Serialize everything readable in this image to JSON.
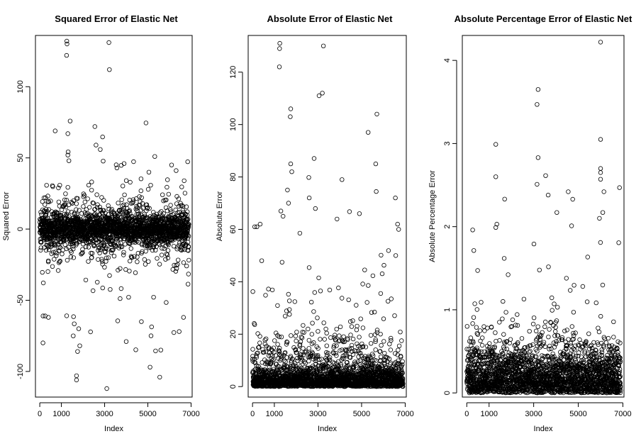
{
  "chart_data": [
    {
      "type": "scatter",
      "title": "Squared Error of Elastic Net",
      "xlabel": "Index",
      "ylabel": "Squared Error",
      "xlim": [
        -200,
        7050
      ],
      "ylim": [
        -118,
        136
      ],
      "xticks": [
        0,
        1000,
        3000,
        5000,
        7000
      ],
      "xtick_labels": [
        "0",
        "1000",
        "3000",
        "5000",
        "7000"
      ],
      "yticks": [
        -100,
        -50,
        0,
        50,
        100
      ],
      "ytick_labels": [
        "-100",
        "-50",
        "0",
        "50",
        "100"
      ],
      "n_points": 6900,
      "distribution": {
        "center": 0,
        "core_spread": 5,
        "mid_spread": 22,
        "outlier_fraction": 0.05
      },
      "notable_points": [
        {
          "x": 1250,
          "y": 132
        },
        {
          "x": 1260,
          "y": 130
        },
        {
          "x": 1240,
          "y": 122
        },
        {
          "x": 3200,
          "y": 131
        },
        {
          "x": 3220,
          "y": 112
        },
        {
          "x": 2550,
          "y": 72
        },
        {
          "x": 2600,
          "y": 59
        },
        {
          "x": 1300,
          "y": 67
        },
        {
          "x": 1300,
          "y": 52
        },
        {
          "x": 1350,
          "y": 48
        },
        {
          "x": 3900,
          "y": 46
        },
        {
          "x": 6100,
          "y": 45
        },
        {
          "x": 5050,
          "y": 40
        },
        {
          "x": 3100,
          "y": -112
        },
        {
          "x": 1700,
          "y": -103
        },
        {
          "x": 1700,
          "y": -106
        },
        {
          "x": 5550,
          "y": -104
        },
        {
          "x": 5100,
          "y": -97
        },
        {
          "x": 5600,
          "y": -85
        },
        {
          "x": 1750,
          "y": -86
        },
        {
          "x": 1850,
          "y": -82
        },
        {
          "x": 4000,
          "y": -79
        },
        {
          "x": 6450,
          "y": -72
        },
        {
          "x": 1800,
          "y": -70
        },
        {
          "x": 1550,
          "y": -75
        },
        {
          "x": 250,
          "y": -61
        },
        {
          "x": 150,
          "y": -61
        },
        {
          "x": 400,
          "y": -62
        },
        {
          "x": 4700,
          "y": -65
        },
        {
          "x": 6650,
          "y": -62
        }
      ]
    },
    {
      "type": "scatter",
      "title": "Absolute Error of Elastic Net",
      "xlabel": "Index",
      "ylabel": "Absolute Error",
      "xlim": [
        -200,
        7050
      ],
      "ylim": [
        -4,
        134
      ],
      "xticks": [
        0,
        1000,
        3000,
        5000,
        7000
      ],
      "xtick_labels": [
        "0",
        "1000",
        "3000",
        "5000",
        "7000"
      ],
      "yticks": [
        0,
        20,
        40,
        60,
        80,
        100,
        120
      ],
      "ytick_labels": [
        "0",
        "20",
        "40",
        "60",
        "80",
        "100",
        "120"
      ],
      "n_points": 6900,
      "distribution": {
        "floor": 0,
        "core_spread": 3,
        "mid_spread": 18,
        "outlier_fraction": 0.05
      },
      "notable_points": [
        {
          "x": 1250,
          "y": 131
        },
        {
          "x": 1240,
          "y": 129
        },
        {
          "x": 1230,
          "y": 122
        },
        {
          "x": 3250,
          "y": 130
        },
        {
          "x": 3200,
          "y": 112
        },
        {
          "x": 3050,
          "y": 111
        },
        {
          "x": 1750,
          "y": 106
        },
        {
          "x": 1730,
          "y": 103
        },
        {
          "x": 5700,
          "y": 104
        },
        {
          "x": 5300,
          "y": 97
        },
        {
          "x": 1750,
          "y": 85
        },
        {
          "x": 1800,
          "y": 82
        },
        {
          "x": 5650,
          "y": 85
        },
        {
          "x": 4100,
          "y": 79
        },
        {
          "x": 1600,
          "y": 75
        },
        {
          "x": 2600,
          "y": 72
        },
        {
          "x": 6550,
          "y": 72
        },
        {
          "x": 1650,
          "y": 70
        },
        {
          "x": 1300,
          "y": 67
        },
        {
          "x": 4900,
          "y": 66
        },
        {
          "x": 1400,
          "y": 65
        },
        {
          "x": 6650,
          "y": 62
        },
        {
          "x": 350,
          "y": 62
        },
        {
          "x": 100,
          "y": 61
        },
        {
          "x": 200,
          "y": 61
        },
        {
          "x": 6700,
          "y": 60
        }
      ]
    },
    {
      "type": "scatter",
      "title": "Absolute Percentage Error of Elastic Net",
      "xlabel": "Index",
      "ylabel": "Absolute Percentage Error",
      "xlim": [
        -200,
        7050
      ],
      "ylim": [
        -0.05,
        4.3
      ],
      "xticks": [
        0,
        1000,
        3000,
        5000,
        7000
      ],
      "xtick_labels": [
        "0",
        "1000",
        "3000",
        "5000",
        "7000"
      ],
      "yticks": [
        0,
        1,
        2,
        3,
        4
      ],
      "ytick_labels": [
        "0",
        "1",
        "2",
        "3",
        "4"
      ],
      "n_points": 6900,
      "distribution": {
        "floor": 0,
        "core_spread": 0.25,
        "mid_spread": 0.6,
        "outlier_fraction": 0.05
      },
      "notable_points": [
        {
          "x": 6000,
          "y": 4.22
        },
        {
          "x": 3200,
          "y": 3.65
        },
        {
          "x": 3150,
          "y": 3.47
        },
        {
          "x": 6000,
          "y": 3.05
        },
        {
          "x": 1300,
          "y": 2.99
        },
        {
          "x": 3200,
          "y": 2.83
        },
        {
          "x": 6000,
          "y": 2.7
        },
        {
          "x": 6000,
          "y": 2.65
        },
        {
          "x": 1300,
          "y": 2.6
        },
        {
          "x": 6000,
          "y": 2.57
        },
        {
          "x": 3150,
          "y": 2.51
        },
        {
          "x": 6850,
          "y": 2.47
        },
        {
          "x": 4550,
          "y": 2.42
        },
        {
          "x": 6150,
          "y": 2.42
        },
        {
          "x": 3650,
          "y": 2.38
        },
        {
          "x": 4750,
          "y": 2.33
        },
        {
          "x": 6100,
          "y": 2.17
        },
        {
          "x": 1350,
          "y": 2.03
        },
        {
          "x": 1300,
          "y": 1.99
        },
        {
          "x": 4700,
          "y": 2.01
        },
        {
          "x": 5950,
          "y": 2.1
        }
      ]
    }
  ]
}
